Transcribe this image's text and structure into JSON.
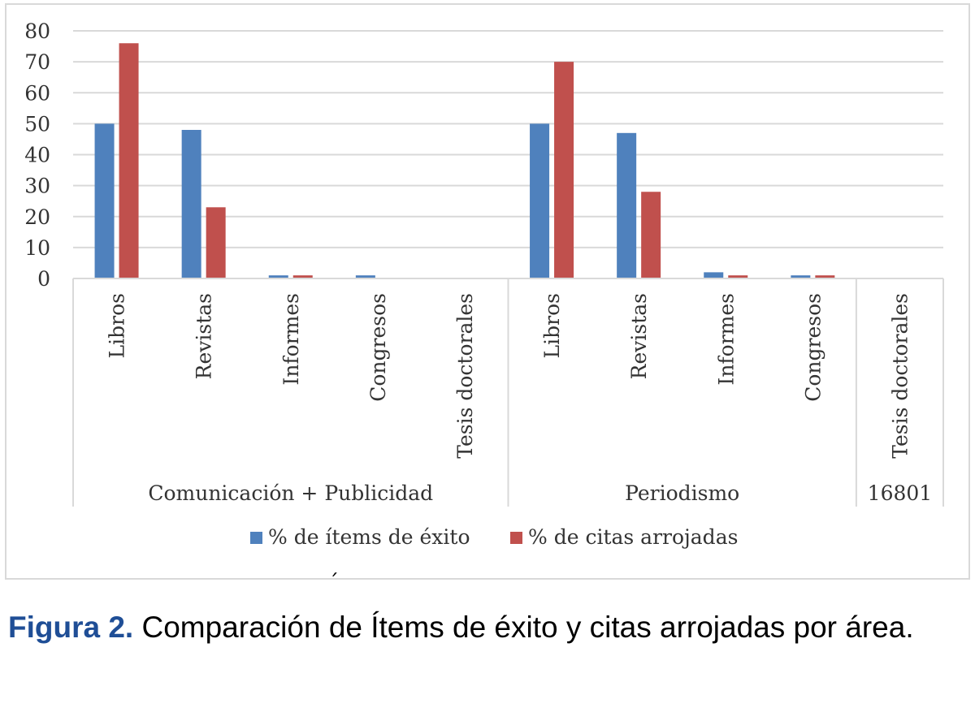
{
  "chart_data": {
    "type": "bar",
    "ylim": [
      0,
      80
    ],
    "yticks": [
      0,
      10,
      20,
      30,
      40,
      50,
      60,
      70,
      80
    ],
    "grid": true,
    "legend_position": "bottom",
    "groups": [
      {
        "label": "Comunicación + Publicidad",
        "categories": [
          "Libros",
          "Revistas",
          "Informes",
          "Congresos",
          "Tesis doctorales"
        ]
      },
      {
        "label": "Periodismo",
        "categories": [
          "Libros",
          "Revistas",
          "Informes",
          "Congresos"
        ]
      },
      {
        "label": "16801",
        "categories": [
          "Tesis doctorales"
        ]
      }
    ],
    "categories": [
      "Libros",
      "Revistas",
      "Informes",
      "Congresos",
      "Tesis doctorales",
      "Libros",
      "Revistas",
      "Informes",
      "Congresos",
      "Tesis doctorales"
    ],
    "series": [
      {
        "name": "% de ítems de éxito",
        "color": "#4f81bd",
        "values": [
          50,
          48,
          1,
          1,
          0,
          50,
          47,
          2,
          1,
          0
        ]
      },
      {
        "name": "% de citas arrojadas",
        "color": "#c0504d",
        "values": [
          76,
          23,
          1,
          0,
          0,
          70,
          28,
          1,
          1,
          0
        ]
      }
    ]
  },
  "caption": {
    "label": "Figura 2.",
    "text": "Comparación de Ítems de éxito y citas arrojadas por área."
  },
  "stray_mark": "´"
}
